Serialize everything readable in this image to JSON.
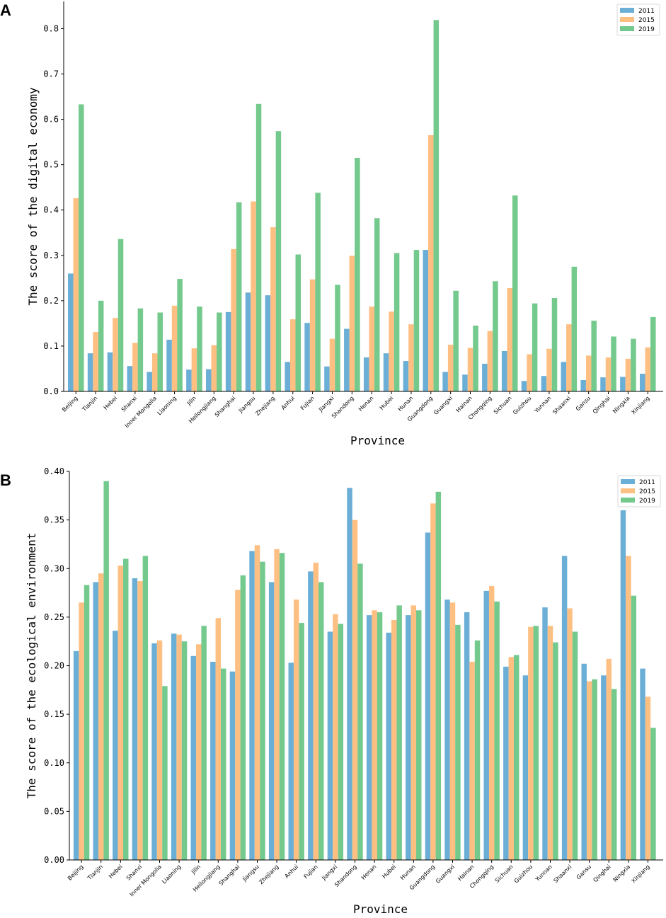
{
  "colors": {
    "2011": "#6baed6",
    "2015": "#fdbf82",
    "2019": "#74c98d"
  },
  "chart_data": [
    {
      "panel": "A",
      "type": "bar",
      "xlabel": "Province",
      "ylabel": "The score of the digital economy",
      "ylim": [
        0,
        0.86
      ],
      "yticks": [
        0.0,
        0.1,
        0.2,
        0.3,
        0.4,
        0.5,
        0.6,
        0.7,
        0.8
      ],
      "ytick_labels": [
        "0.0",
        "0.1",
        "0.2",
        "0.3",
        "0.4",
        "0.5",
        "0.6",
        "0.7",
        "0.8"
      ],
      "legend_position": "top-right",
      "categories": [
        "Beijing",
        "Tianjin",
        "Hebei",
        "Shanxi",
        "Inner Mongolia",
        "Liaoning",
        "Jilin",
        "Heilongjiang",
        "Shanghai",
        "Jiangsu",
        "Zhejiang",
        "Anhui",
        "Fujian",
        "Jiangxi",
        "Shandong",
        "Henan",
        "Hubei",
        "Hunan",
        "Guangdong",
        "Guangxi",
        "Hainan",
        "Chongqing",
        "Sichuan",
        "Guizhou",
        "Yunnan",
        "Shaanxi",
        "Gansu",
        "Qinghai",
        "Ningxia",
        "Xinjiang"
      ],
      "series": [
        {
          "name": "2011",
          "values": [
            0.26,
            0.084,
            0.086,
            0.056,
            0.043,
            0.114,
            0.048,
            0.049,
            0.175,
            0.218,
            0.212,
            0.065,
            0.151,
            0.055,
            0.138,
            0.075,
            0.084,
            0.067,
            0.312,
            0.043,
            0.037,
            0.061,
            0.089,
            0.023,
            0.034,
            0.065,
            0.025,
            0.031,
            0.032,
            0.039
          ]
        },
        {
          "name": "2015",
          "values": [
            0.426,
            0.131,
            0.162,
            0.107,
            0.084,
            0.189,
            0.095,
            0.102,
            0.314,
            0.419,
            0.362,
            0.159,
            0.247,
            0.116,
            0.299,
            0.187,
            0.176,
            0.148,
            0.565,
            0.103,
            0.096,
            0.133,
            0.228,
            0.082,
            0.094,
            0.148,
            0.079,
            0.075,
            0.072,
            0.097
          ]
        },
        {
          "name": "2019",
          "values": [
            0.633,
            0.2,
            0.336,
            0.183,
            0.174,
            0.248,
            0.187,
            0.174,
            0.417,
            0.634,
            0.574,
            0.302,
            0.438,
            0.235,
            0.515,
            0.382,
            0.305,
            0.312,
            0.819,
            0.222,
            0.145,
            0.243,
            0.432,
            0.194,
            0.206,
            0.275,
            0.156,
            0.121,
            0.116,
            0.164
          ]
        }
      ]
    },
    {
      "panel": "B",
      "type": "bar",
      "xlabel": "Province",
      "ylabel": "The score of the ecological environment",
      "ylim": [
        0,
        0.4
      ],
      "yticks": [
        0.0,
        0.05,
        0.1,
        0.15,
        0.2,
        0.25,
        0.3,
        0.35,
        0.4
      ],
      "ytick_labels": [
        "0.00",
        "0.05",
        "0.10",
        "0.15",
        "0.20",
        "0.25",
        "0.30",
        "0.35",
        "0.40"
      ],
      "legend_position": "top-right",
      "categories": [
        "Beijing",
        "Tianjin",
        "Hebei",
        "Shanxi",
        "Inner Mongolia",
        "Liaoning",
        "Jilin",
        "Heilongjiang",
        "Shanghai",
        "Jiangsu",
        "Zhejiang",
        "Anhui",
        "Fujian",
        "Jiangxi",
        "Shandong",
        "Henan",
        "Hubei",
        "Hunan",
        "Guangdong",
        "Guangxi",
        "Hainan",
        "Chongqing",
        "Sichuan",
        "Guizhou",
        "Yunnan",
        "Shaanxi",
        "Gansu",
        "Qinghai",
        "Ningxia",
        "Xinjiang"
      ],
      "series": [
        {
          "name": "2011",
          "values": [
            0.215,
            0.286,
            0.236,
            0.29,
            0.223,
            0.233,
            0.21,
            0.204,
            0.194,
            0.318,
            0.286,
            0.203,
            0.297,
            0.235,
            0.383,
            0.252,
            0.234,
            0.252,
            0.337,
            0.268,
            0.255,
            0.277,
            0.199,
            0.19,
            0.26,
            0.313,
            0.202,
            0.19,
            0.36,
            0.197
          ]
        },
        {
          "name": "2015",
          "values": [
            0.265,
            0.295,
            0.303,
            0.287,
            0.226,
            0.232,
            0.222,
            0.249,
            0.278,
            0.324,
            0.32,
            0.268,
            0.306,
            0.253,
            0.35,
            0.257,
            0.247,
            0.262,
            0.367,
            0.265,
            0.204,
            0.282,
            0.209,
            0.24,
            0.241,
            0.259,
            0.184,
            0.207,
            0.313,
            0.168
          ]
        },
        {
          "name": "2019",
          "values": [
            0.283,
            0.39,
            0.31,
            0.313,
            0.179,
            0.225,
            0.241,
            0.197,
            0.293,
            0.307,
            0.316,
            0.244,
            0.286,
            0.243,
            0.305,
            0.255,
            0.262,
            0.257,
            0.379,
            0.242,
            0.226,
            0.266,
            0.211,
            0.241,
            0.224,
            0.235,
            0.186,
            0.176,
            0.272,
            0.136
          ]
        }
      ]
    }
  ]
}
